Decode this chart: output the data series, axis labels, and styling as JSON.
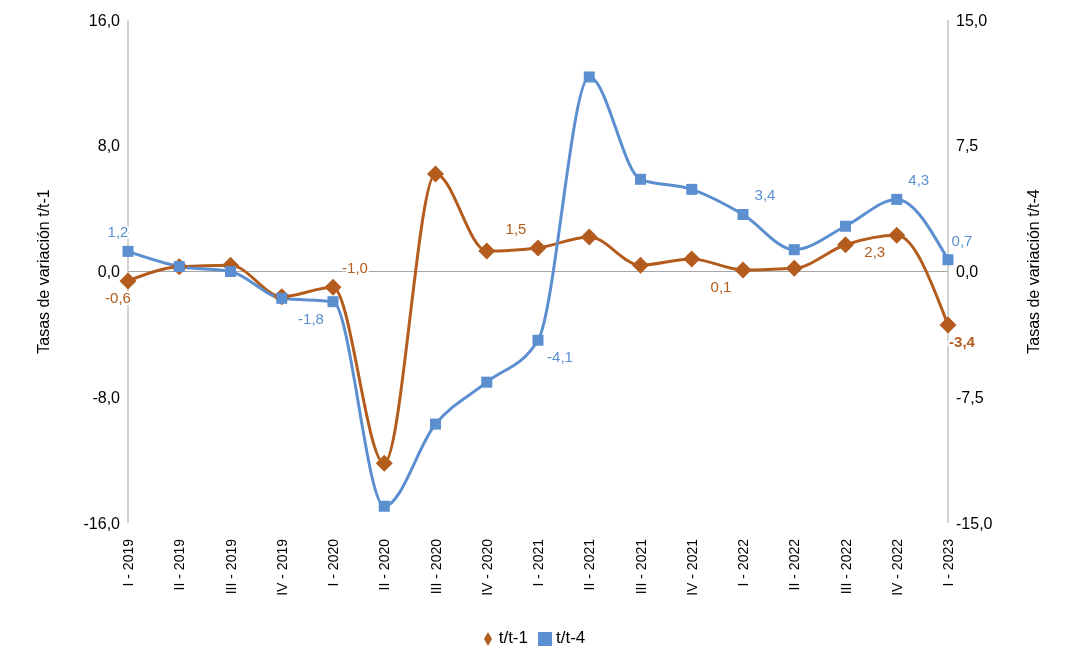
{
  "chart_data": {
    "type": "line",
    "categories": [
      "I - 2019",
      "II - 2019",
      "III - 2019",
      "IV - 2019",
      "I - 2020",
      "II - 2020",
      "III - 2020",
      "IV - 2020",
      "I - 2021",
      "II - 2021",
      "III - 2021",
      "IV - 2021",
      "I - 2022",
      "II - 2022",
      "III - 2022",
      "IV - 2022",
      "I - 2023"
    ],
    "series": [
      {
        "name": "t/t-1",
        "color": "#b35c1e",
        "marker": "diamond",
        "values": [
          -0.6,
          0.3,
          0.4,
          -1.6,
          -1.0,
          -12.2,
          6.2,
          1.3,
          1.5,
          2.2,
          0.4,
          0.8,
          0.1,
          0.2,
          1.7,
          2.3,
          -3.4
        ],
        "value_labels": [
          "-0,6",
          null,
          null,
          null,
          "-1,0",
          null,
          null,
          null,
          "1,5",
          null,
          null,
          null,
          "0,1",
          null,
          null,
          "2,3",
          "-3,4"
        ]
      },
      {
        "name": "t/t-4",
        "color": "#5b8fd0",
        "marker": "square",
        "axis": "y2",
        "values": [
          1.2,
          0.3,
          0.0,
          -1.6,
          -1.8,
          -14.0,
          -9.1,
          -6.6,
          -4.1,
          11.6,
          5.5,
          4.9,
          3.4,
          1.3,
          2.7,
          4.3,
          0.7
        ],
        "value_labels": [
          "1,2",
          null,
          null,
          null,
          "-1,8",
          null,
          null,
          null,
          "-4,1",
          null,
          null,
          null,
          "3,4",
          null,
          null,
          "4,3",
          "0,7"
        ]
      }
    ],
    "ylabel": "Tasas de variación t/t-1",
    "y2label": "Tasas de variación t/t-4",
    "ylim": [
      -16,
      16
    ],
    "yticks": [
      {
        "value": -16,
        "label": "-16,0"
      },
      {
        "value": -8,
        "label": "-8,0"
      },
      {
        "value": 0,
        "label": "0,0"
      },
      {
        "value": 8,
        "label": "8,0"
      },
      {
        "value": 16,
        "label": "16,0"
      }
    ],
    "y2lim": [
      -15,
      15
    ],
    "y2ticks": [
      {
        "value": -15,
        "label": "-15,0"
      },
      {
        "value": -7.5,
        "label": "-7,5"
      },
      {
        "value": 0,
        "label": "0,0"
      },
      {
        "value": 7.5,
        "label": "7,5"
      },
      {
        "value": 15,
        "label": "15,0"
      }
    ],
    "ref_lines": [
      {
        "axis": "y",
        "value": 0,
        "color": "#a6a6a6"
      }
    ],
    "legend": "bottom",
    "grid": false,
    "line_style": "solid"
  }
}
